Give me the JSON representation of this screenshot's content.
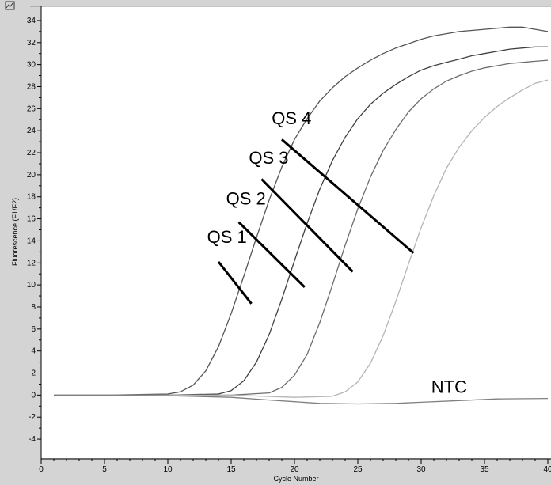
{
  "window": {
    "corner_icon": "chart-window-icon"
  },
  "chart_data": {
    "type": "line",
    "xlabel": "Cycle Number",
    "ylabel": "Fluorescence (F1/F2)",
    "xlim": [
      0,
      40
    ],
    "ylim": [
      -5,
      35
    ],
    "xticks": [
      0,
      5,
      10,
      15,
      20,
      25,
      30,
      35,
      40
    ],
    "yticks": [
      -4,
      -2,
      0,
      2,
      4,
      6,
      8,
      10,
      12,
      14,
      16,
      18,
      20,
      22,
      24,
      26,
      28,
      30,
      32,
      34
    ],
    "grid": false,
    "series": [
      {
        "name": "QS 1",
        "color": "#555555",
        "x": [
          1,
          5,
          10,
          11,
          12,
          13,
          14,
          15,
          16,
          17,
          18,
          19,
          20,
          21,
          22,
          23,
          24,
          25,
          26,
          27,
          28,
          29,
          30,
          31,
          32,
          33,
          34,
          35,
          36,
          37,
          38,
          39,
          40
        ],
        "y": [
          0,
          0,
          0.1,
          0.3,
          0.9,
          2.2,
          4.4,
          7.4,
          10.8,
          14.3,
          17.7,
          20.7,
          23.2,
          25.1,
          26.7,
          27.9,
          28.9,
          29.7,
          30.4,
          31.0,
          31.5,
          31.9,
          32.3,
          32.6,
          32.8,
          33.0,
          33.1,
          33.2,
          33.3,
          33.4,
          33.4,
          33.2,
          33.0
        ]
      },
      {
        "name": "QS 2",
        "color": "#404040",
        "x": [
          1,
          5,
          10,
          14,
          15,
          16,
          17,
          18,
          19,
          20,
          21,
          22,
          23,
          24,
          25,
          26,
          27,
          28,
          29,
          30,
          31,
          32,
          33,
          34,
          35,
          36,
          37,
          38,
          39,
          40
        ],
        "y": [
          0,
          0,
          0,
          0.1,
          0.4,
          1.3,
          3.0,
          5.5,
          8.7,
          12.2,
          15.6,
          18.7,
          21.3,
          23.4,
          25.1,
          26.4,
          27.4,
          28.2,
          28.9,
          29.5,
          29.9,
          30.2,
          30.5,
          30.8,
          31.0,
          31.2,
          31.4,
          31.5,
          31.6,
          31.6
        ]
      },
      {
        "name": "QS 3",
        "color": "#6e6e6e",
        "x": [
          1,
          5,
          10,
          15,
          18,
          19,
          20,
          21,
          22,
          23,
          24,
          25,
          26,
          27,
          28,
          29,
          30,
          31,
          32,
          33,
          34,
          35,
          36,
          37,
          38,
          39,
          40
        ],
        "y": [
          0,
          0,
          0,
          0,
          0.2,
          0.7,
          1.8,
          3.7,
          6.6,
          10.0,
          13.6,
          16.9,
          19.8,
          22.2,
          24.1,
          25.7,
          26.9,
          27.8,
          28.5,
          29.0,
          29.4,
          29.7,
          29.9,
          30.1,
          30.2,
          30.3,
          30.4
        ]
      },
      {
        "name": "QS 4",
        "color": "#b4b4b4",
        "x": [
          1,
          5,
          10,
          15,
          20,
          23,
          24,
          25,
          26,
          27,
          28,
          29,
          30,
          31,
          32,
          33,
          34,
          35,
          36,
          37,
          38,
          39,
          40
        ],
        "y": [
          0,
          0,
          0,
          0,
          -0.2,
          -0.1,
          0.3,
          1.2,
          2.9,
          5.4,
          8.5,
          11.9,
          15.2,
          18.1,
          20.6,
          22.5,
          24.0,
          25.2,
          26.2,
          27.0,
          27.7,
          28.3,
          28.6
        ]
      },
      {
        "name": "NTC",
        "color": "#808080",
        "x": [
          1,
          5,
          10,
          15,
          18,
          20,
          22,
          25,
          28,
          30,
          33,
          36,
          40
        ],
        "y": [
          0,
          0,
          -0.05,
          -0.2,
          -0.45,
          -0.6,
          -0.75,
          -0.8,
          -0.75,
          -0.65,
          -0.5,
          -0.35,
          -0.3
        ]
      }
    ],
    "annotations": [
      {
        "text": "QS 4",
        "x": 18.2,
        "y": 24.6,
        "line": [
          [
            19.0,
            23.2
          ],
          [
            29.4,
            12.9
          ]
        ]
      },
      {
        "text": "QS 3",
        "x": 16.4,
        "y": 21.0,
        "line": [
          [
            17.4,
            19.6
          ],
          [
            24.6,
            11.2
          ]
        ]
      },
      {
        "text": "QS 2",
        "x": 14.6,
        "y": 17.3,
        "line": [
          [
            15.6,
            15.7
          ],
          [
            20.8,
            9.8
          ]
        ]
      },
      {
        "text": "QS 1",
        "x": 13.1,
        "y": 13.8,
        "line": [
          [
            14.0,
            12.1
          ],
          [
            16.6,
            8.3
          ]
        ]
      },
      {
        "text": "NTC",
        "x": 30.8,
        "y": 0.2,
        "line": null
      }
    ]
  }
}
